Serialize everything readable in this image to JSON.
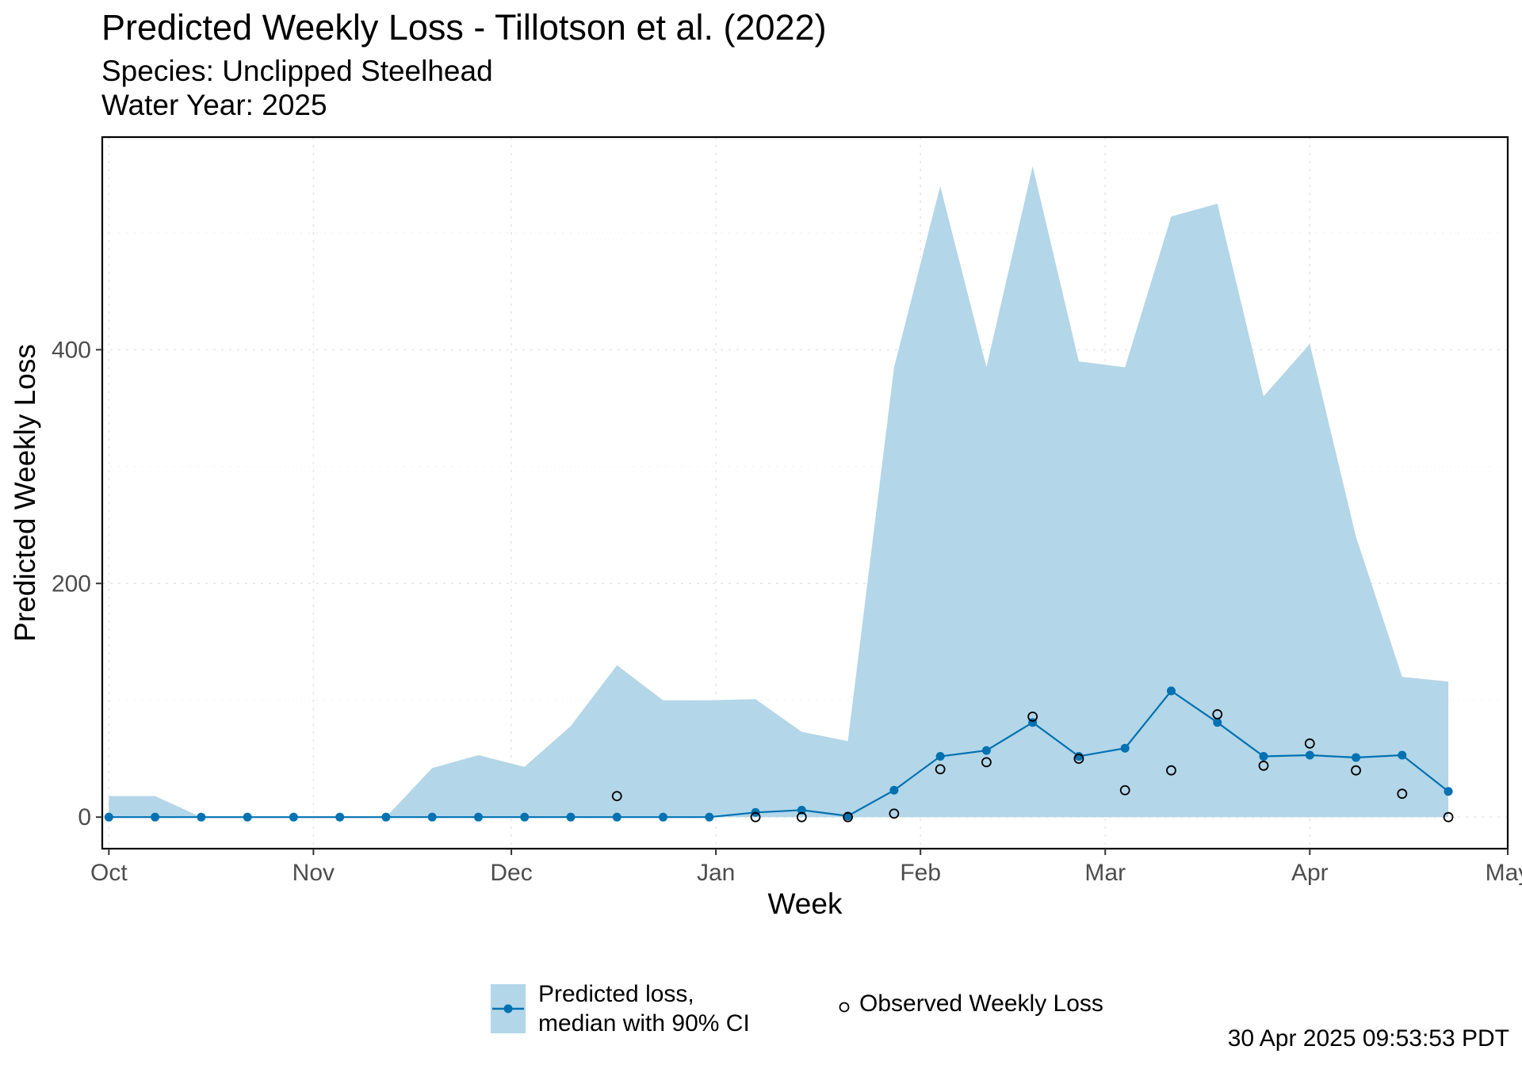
{
  "header": {
    "title": "Predicted Weekly Loss - Tillotson et al. (2022)",
    "subtitle_species": "Species: Unclipped Steelhead",
    "subtitle_year": "Water Year: 2025"
  },
  "legend": {
    "predicted_label_line1": "Predicted loss,",
    "predicted_label_line2": "median with 90% CI",
    "observed_label": "Observed Weekly Loss"
  },
  "footer": {
    "timestamp": "30 Apr 2025 09:53:53 PDT"
  },
  "colors": {
    "ribbon": "#b3d6e8",
    "median": "#0072b2",
    "observed": "#000000"
  },
  "chart_data": {
    "type": "line",
    "xlabel": "Week",
    "ylabel": "Predicted Weekly Loss",
    "xlim": [
      "2024-09-30",
      "2025-05-01"
    ],
    "ylim": [
      -27,
      582
    ],
    "x_ticks": [
      {
        "date": "2024-10-01",
        "label": "Oct"
      },
      {
        "date": "2024-11-01",
        "label": "Nov"
      },
      {
        "date": "2024-12-01",
        "label": "Dec"
      },
      {
        "date": "2025-01-01",
        "label": "Jan"
      },
      {
        "date": "2025-02-01",
        "label": "Feb"
      },
      {
        "date": "2025-03-01",
        "label": "Mar"
      },
      {
        "date": "2025-04-01",
        "label": "Apr"
      },
      {
        "date": "2025-05-01",
        "label": "May"
      }
    ],
    "y_ticks": [
      0,
      200,
      400
    ],
    "grid": true,
    "legend_position": "bottom",
    "x": [
      "2024-10-01",
      "2024-10-08",
      "2024-10-15",
      "2024-10-22",
      "2024-10-29",
      "2024-11-05",
      "2024-11-12",
      "2024-11-19",
      "2024-11-26",
      "2024-12-03",
      "2024-12-10",
      "2024-12-17",
      "2024-12-24",
      "2024-12-31",
      "2025-01-07",
      "2025-01-14",
      "2025-01-21",
      "2025-01-28",
      "2025-02-04",
      "2025-02-11",
      "2025-02-18",
      "2025-02-25",
      "2025-03-04",
      "2025-03-11",
      "2025-03-18",
      "2025-03-25",
      "2025-04-01",
      "2025-04-08",
      "2025-04-15",
      "2025-04-22"
    ],
    "series": [
      {
        "name": "Predicted loss, median with 90% CI",
        "median": [
          0,
          0,
          0,
          0,
          0,
          0,
          0,
          0,
          0,
          0,
          0,
          0,
          0,
          0,
          4,
          6,
          1,
          23,
          52,
          57,
          81,
          52,
          59,
          108,
          81,
          52,
          53,
          51,
          53,
          22
        ],
        "lower": [
          0,
          0,
          0,
          0,
          0,
          0,
          0,
          0,
          0,
          0,
          0,
          0,
          0,
          0,
          0,
          0,
          0,
          0,
          0,
          0,
          0,
          0,
          0,
          0,
          0,
          0,
          0,
          0,
          0,
          0
        ],
        "upper": [
          18,
          18,
          0,
          0,
          0,
          0,
          0,
          42,
          53,
          43,
          78,
          130,
          100,
          100,
          101,
          73,
          65,
          385,
          540,
          385,
          557,
          390,
          385,
          514,
          525,
          360,
          405,
          240,
          120,
          116
        ]
      },
      {
        "name": "Observed Weekly Loss",
        "values": [
          null,
          null,
          null,
          null,
          null,
          null,
          null,
          null,
          null,
          null,
          null,
          18,
          null,
          null,
          0,
          0,
          0,
          3,
          41,
          47,
          86,
          50,
          23,
          40,
          88,
          44,
          63,
          40,
          20,
          0
        ]
      }
    ]
  }
}
